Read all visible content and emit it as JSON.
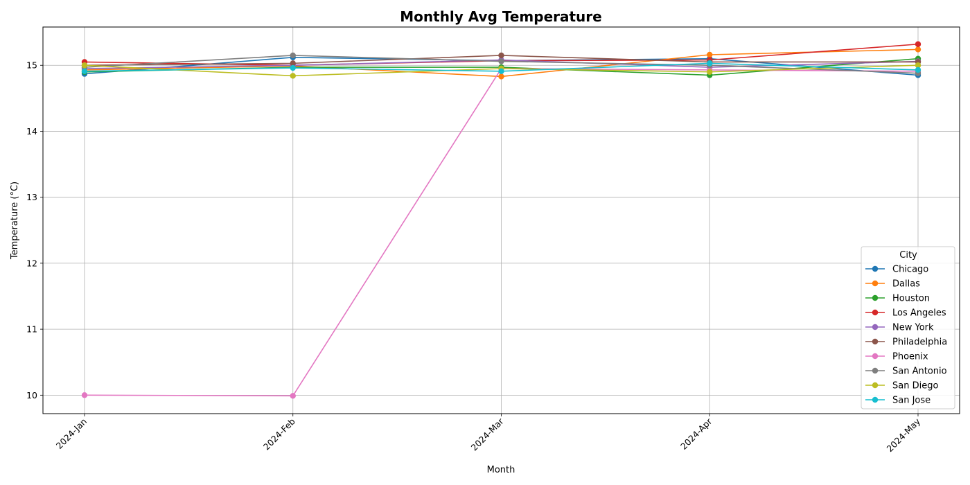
{
  "chart_data": {
    "type": "line",
    "title": "Monthly Avg Temperature",
    "xlabel": "Month",
    "ylabel": "Temperature (°C)",
    "categories": [
      "2024-Jan",
      "2024-Feb",
      "2024-Mar",
      "2024-Apr",
      "2024-May"
    ],
    "ylim": [
      9.72,
      15.58
    ],
    "yticks": [
      10,
      11,
      12,
      13,
      14,
      15
    ],
    "grid": true,
    "legend": {
      "title": "City",
      "placement": "lower-right"
    },
    "series": [
      {
        "name": "Chicago",
        "color": "#1f77b4",
        "values": [
          14.87,
          15.12,
          15.07,
          15.1,
          14.85
        ]
      },
      {
        "name": "Dallas",
        "color": "#ff7f0e",
        "values": [
          14.93,
          14.99,
          14.83,
          15.16,
          15.24
        ]
      },
      {
        "name": "Houston",
        "color": "#2ca02c",
        "values": [
          14.9,
          14.97,
          14.97,
          14.85,
          15.1
        ]
      },
      {
        "name": "Los Angeles",
        "color": "#d62728",
        "values": [
          15.05,
          15.0,
          15.07,
          15.08,
          15.32
        ]
      },
      {
        "name": "New York",
        "color": "#9467bd",
        "values": [
          14.95,
          15.0,
          15.08,
          14.97,
          15.06
        ]
      },
      {
        "name": "Philadelphia",
        "color": "#8c564b",
        "values": [
          15.0,
          15.03,
          15.15,
          15.05,
          15.05
        ]
      },
      {
        "name": "Phoenix",
        "color": "#e377c2",
        "values": [
          10.0,
          9.99,
          14.95,
          14.93,
          14.91
        ]
      },
      {
        "name": "San Antonio",
        "color": "#7f7f7f",
        "values": [
          14.97,
          15.15,
          15.06,
          15.0,
          14.88
        ]
      },
      {
        "name": "San Diego",
        "color": "#bcbd22",
        "values": [
          15.0,
          14.84,
          14.95,
          14.9,
          15.0
        ]
      },
      {
        "name": "San Jose",
        "color": "#17becf",
        "values": [
          14.91,
          14.96,
          14.91,
          15.03,
          14.93
        ]
      }
    ]
  }
}
